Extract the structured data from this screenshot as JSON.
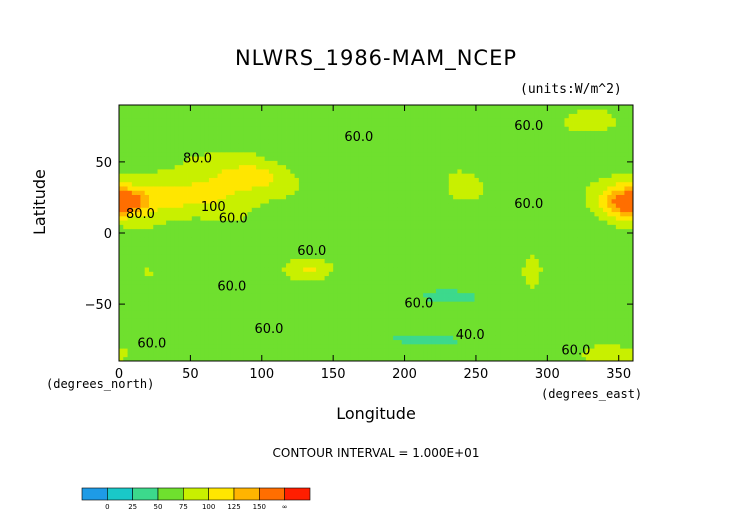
{
  "chart_data": {
    "type": "heatmap",
    "title": "NLWRS_1986-MAM_NCEP",
    "units": "(units:W/m^2)",
    "xlabel": "Longitude",
    "ylabel": "Latitude",
    "x_note": "(degrees_east)",
    "y_note": "(degrees_north)",
    "xlim": [
      0,
      360
    ],
    "ylim": [
      -90,
      90
    ],
    "x_ticks": [
      0,
      50,
      100,
      150,
      200,
      250,
      300,
      350
    ],
    "y_ticks": [
      -50,
      0,
      50
    ],
    "contour_interval_label": "CONTOUR INTERVAL = 1.000E+01",
    "contour_labels": [
      {
        "text": "80.0",
        "lon": 55,
        "lat": 52
      },
      {
        "text": "100",
        "lon": 66,
        "lat": 18
      },
      {
        "text": "80.0",
        "lon": 15,
        "lat": 13
      },
      {
        "text": "60.0",
        "lon": 80,
        "lat": 10
      },
      {
        "text": "60.0",
        "lon": 168,
        "lat": 67
      },
      {
        "text": "60.0",
        "lon": 287,
        "lat": 75
      },
      {
        "text": "60.0",
        "lon": 287,
        "lat": 20
      },
      {
        "text": "60.0",
        "lon": 135,
        "lat": -13
      },
      {
        "text": "60.0",
        "lon": 79,
        "lat": -38
      },
      {
        "text": "60.0",
        "lon": 210,
        "lat": -50
      },
      {
        "text": "60.0",
        "lon": 105,
        "lat": -68
      },
      {
        "text": "60.0",
        "lon": 23,
        "lat": -78
      },
      {
        "text": "40.0",
        "lon": 246,
        "lat": -72
      },
      {
        "text": "60.0",
        "lon": 320,
        "lat": -83
      }
    ],
    "colorbar": {
      "ticks": [
        "0",
        "25",
        "50",
        "75",
        "100",
        "125",
        "150",
        "∞"
      ],
      "colors": [
        "#1e9be6",
        "#19c8c8",
        "#3cd98c",
        "#6fe02e",
        "#c8f000",
        "#ffe600",
        "#ffb400",
        "#ff6e00",
        "#ff1e00"
      ]
    },
    "field": {
      "levels": [
        0,
        25,
        50,
        75,
        100,
        125,
        150
      ],
      "description": "approximate field features (value in W/m^2, centre lon/lat, radius deg)",
      "features": [
        {
          "lon": 20,
          "lat": 25,
          "rx": 30,
          "ry": 14,
          "value": 110
        },
        {
          "lon": 5,
          "lat": 22,
          "rx": 14,
          "ry": 9,
          "value": 140
        },
        {
          "lon": 70,
          "lat": 28,
          "rx": 30,
          "ry": 16,
          "value": 100
        },
        {
          "lon": 95,
          "lat": 40,
          "rx": 22,
          "ry": 10,
          "value": 110
        },
        {
          "lon": 60,
          "lat": 50,
          "rx": 18,
          "ry": 8,
          "value": 85
        },
        {
          "lon": 240,
          "lat": 33,
          "rx": 12,
          "ry": 10,
          "value": 95
        },
        {
          "lon": 350,
          "lat": 22,
          "rx": 14,
          "ry": 12,
          "value": 130
        },
        {
          "lon": 328,
          "lat": 78,
          "rx": 22,
          "ry": 8,
          "value": 85
        },
        {
          "lon": 135,
          "lat": -25,
          "rx": 15,
          "ry": 7,
          "value": 100
        },
        {
          "lon": 290,
          "lat": -27,
          "rx": 7,
          "ry": 12,
          "value": 95
        },
        {
          "lon": 20,
          "lat": -28,
          "rx": 7,
          "ry": 6,
          "value": 85
        },
        {
          "lon": 350,
          "lat": -85,
          "rx": 20,
          "ry": 6,
          "value": 90
        },
        {
          "lon": 150,
          "lat": 5,
          "rx": 25,
          "ry": 6,
          "value": 50
        },
        {
          "lon": 230,
          "lat": -45,
          "rx": 35,
          "ry": 8,
          "value": 45
        },
        {
          "lon": 210,
          "lat": -75,
          "rx": 45,
          "ry": 6,
          "value": 45
        },
        {
          "lon": 60,
          "lat": 80,
          "rx": 25,
          "ry": 5,
          "value": 50
        },
        {
          "lon": 300,
          "lat": -5,
          "rx": 15,
          "ry": 8,
          "value": 50
        }
      ],
      "background_value": 65
    }
  }
}
